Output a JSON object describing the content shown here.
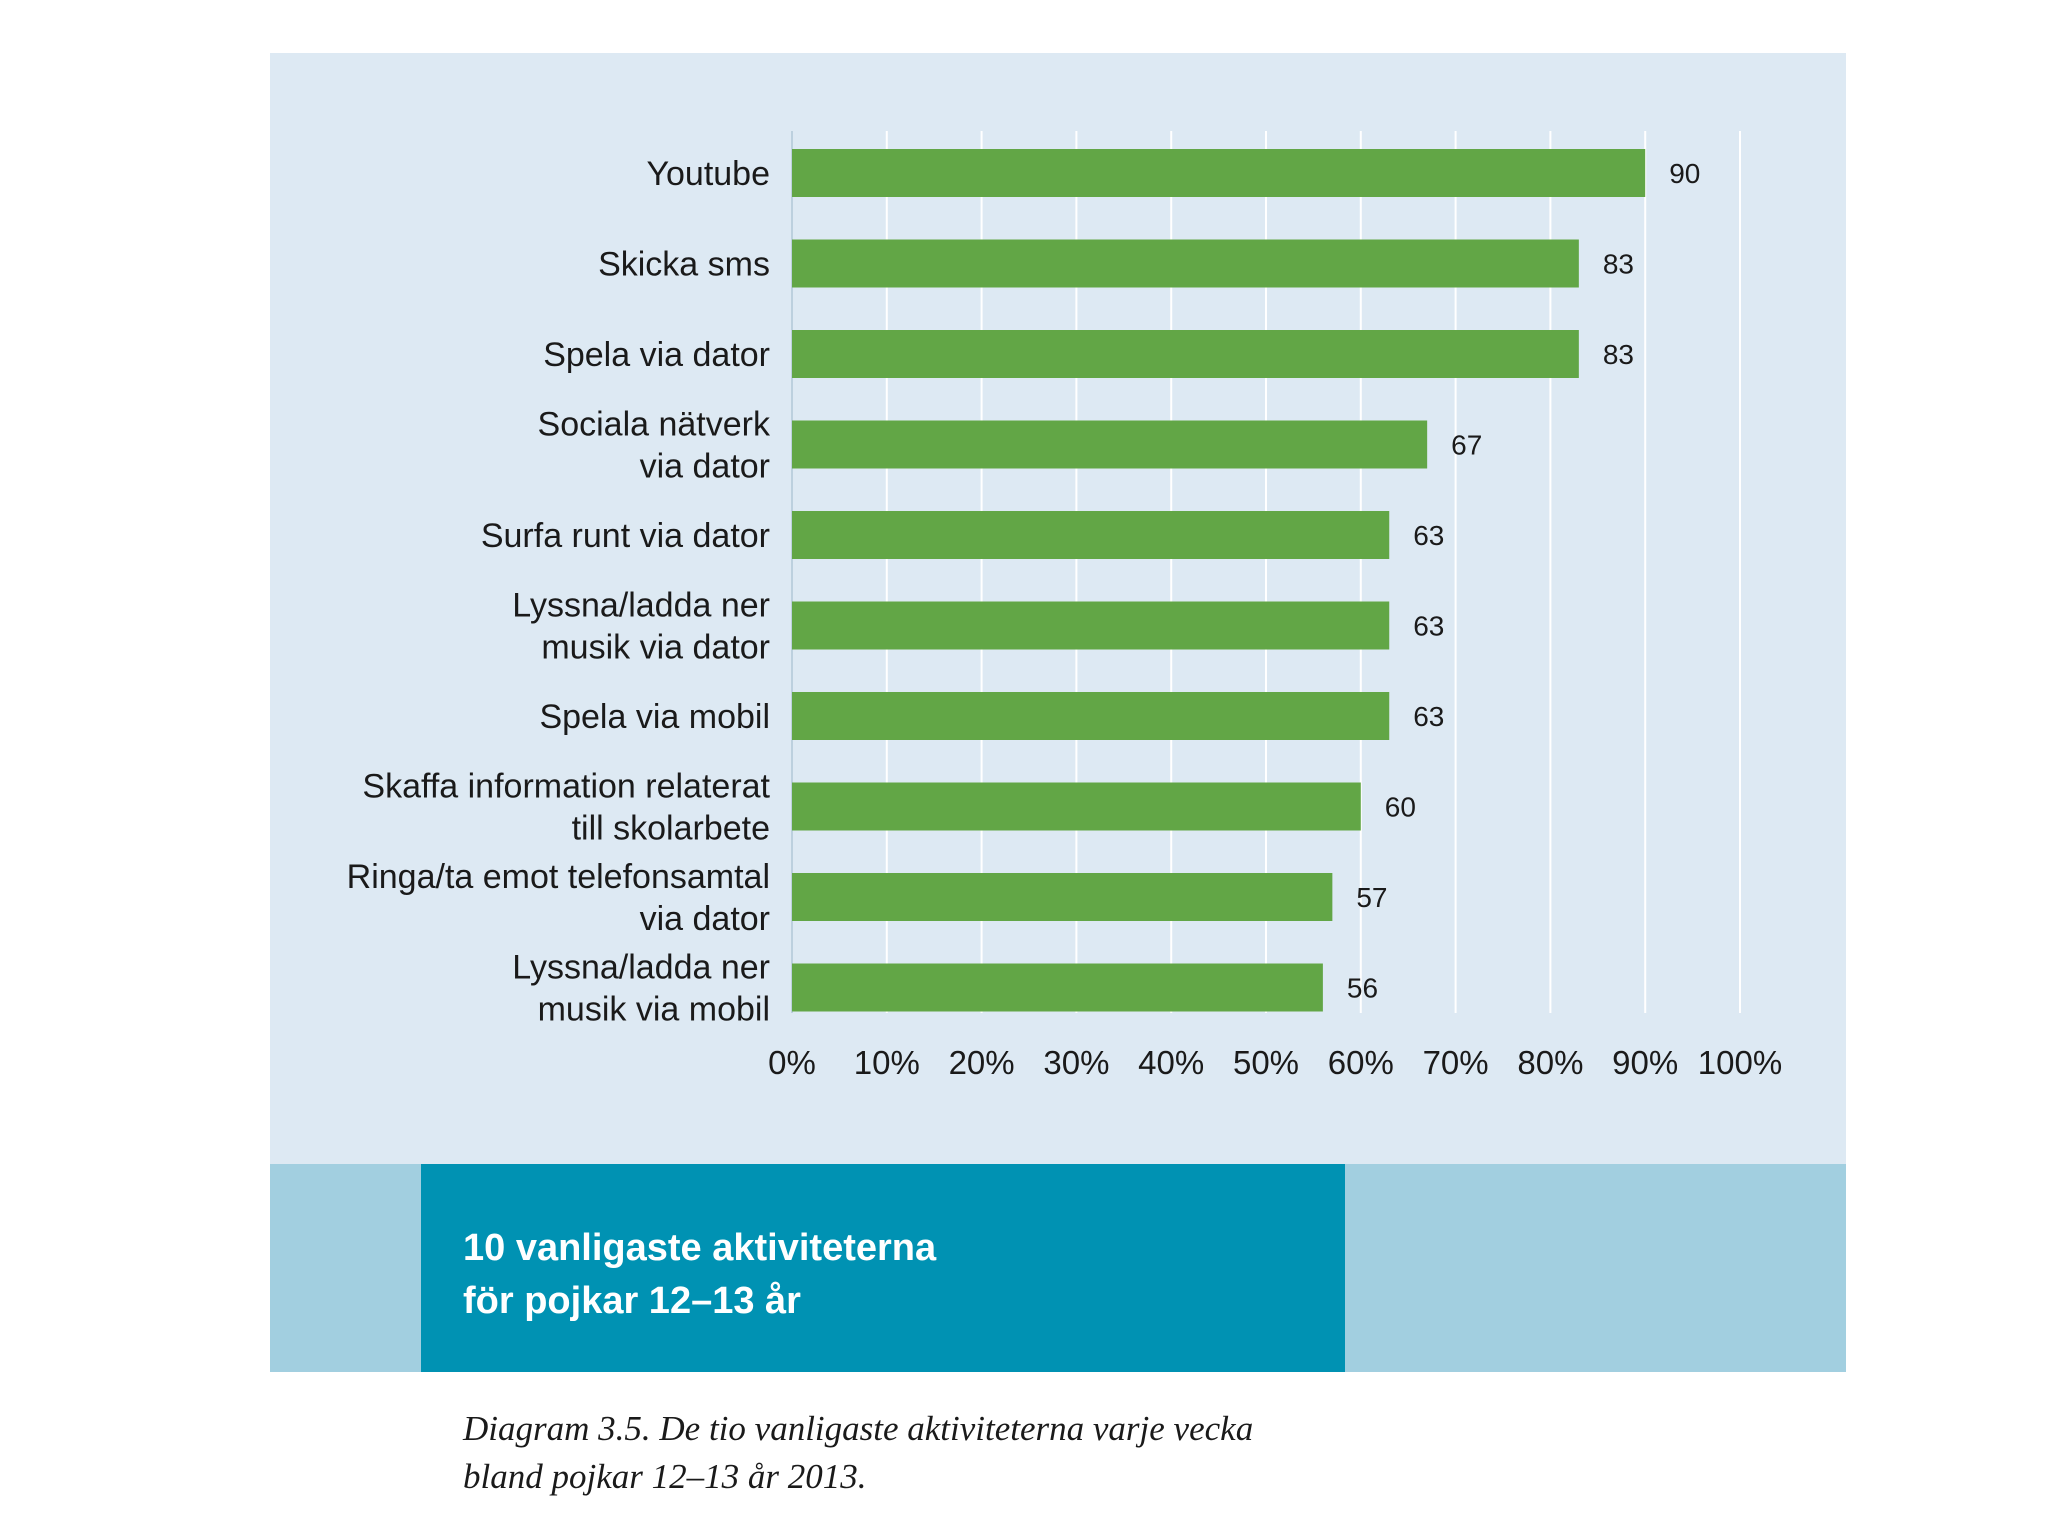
{
  "chart_data": {
    "type": "bar",
    "orientation": "horizontal",
    "categories": [
      [
        "Youtube"
      ],
      [
        "Skicka sms"
      ],
      [
        "Spela via dator"
      ],
      [
        "Sociala nätverk",
        "via dator"
      ],
      [
        "Surfa runt via dator"
      ],
      [
        "Lyssna/ladda ner",
        "musik via dator"
      ],
      [
        "Spela via mobil"
      ],
      [
        "Skaffa information relaterat",
        "till skolarbete"
      ],
      [
        "Ringa/ta emot telefonsamtal",
        "via dator"
      ],
      [
        "Lyssna/ladda ner",
        "musik via mobil"
      ]
    ],
    "values": [
      90,
      83,
      83,
      67,
      63,
      63,
      63,
      60,
      57,
      56
    ],
    "x_ticks": [
      "0%",
      "10%",
      "20%",
      "30%",
      "40%",
      "50%",
      "60%",
      "70%",
      "80%",
      "90%",
      "100%"
    ],
    "xlim": [
      0,
      100
    ],
    "grid": true,
    "colors": {
      "bar": "#62a646",
      "grid": "#ffffff",
      "panel": "#dde9f3"
    }
  },
  "title_box": {
    "lines": [
      "10 vanligaste aktiviteterna",
      "för pojkar 12–13 år"
    ],
    "colors": {
      "box": "#0092b3",
      "band": "#a2cfe0"
    }
  },
  "caption": {
    "lines": [
      "Diagram 3.5. De tio vanligaste aktiviteterna varje vecka",
      "bland pojkar 12–13 år 2013."
    ]
  }
}
